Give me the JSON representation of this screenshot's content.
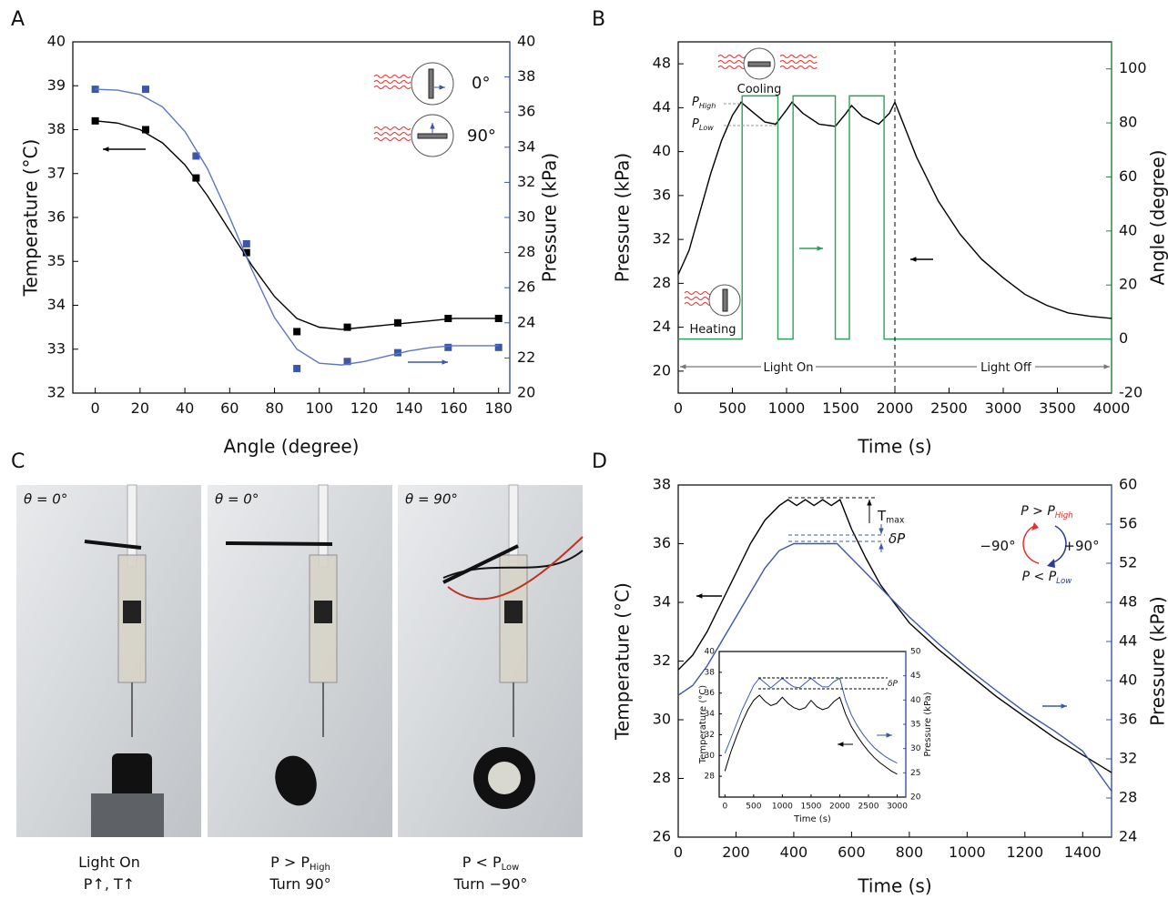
{
  "chart_data": [
    {
      "type": "line",
      "panel": "A",
      "x_label": "Angle (degree)",
      "y_label": "Temperature (°C)",
      "y2_label": "Pressure (kPa)",
      "xlim": [
        -10,
        185
      ],
      "xticks": [
        0,
        20,
        40,
        60,
        80,
        100,
        120,
        140,
        160,
        180
      ],
      "ylim": [
        32,
        40
      ],
      "yticks": [
        32,
        33,
        34,
        35,
        36,
        37,
        38,
        39,
        40
      ],
      "y2lim": [
        20,
        40
      ],
      "y2ticks": [
        20,
        22,
        24,
        26,
        28,
        30,
        32,
        34,
        36,
        38,
        40
      ],
      "y2_color": "#3b58a8",
      "series": [
        {
          "style": "markers",
          "color": "#000000",
          "x": [
            0,
            22.5,
            45,
            67.5,
            90,
            112.5,
            135,
            157.5,
            180
          ],
          "values": [
            38.2,
            38.0,
            36.9,
            35.2,
            33.4,
            33.5,
            33.6,
            33.7,
            33.7
          ]
        },
        {
          "style": "line",
          "color": "#000000",
          "x": [
            0,
            10,
            20,
            30,
            40,
            50,
            60,
            70,
            80,
            90,
            100,
            110,
            120,
            130,
            140,
            150,
            160,
            170,
            180
          ],
          "values": [
            38.2,
            38.15,
            38.0,
            37.7,
            37.2,
            36.5,
            35.7,
            34.9,
            34.2,
            33.7,
            33.5,
            33.45,
            33.5,
            33.55,
            33.6,
            33.65,
            33.7,
            33.7,
            33.7
          ]
        },
        {
          "style": "markers",
          "color": "#3b58a8",
          "axis": "y2",
          "x": [
            0,
            22.5,
            45,
            67.5,
            90,
            112.5,
            135,
            157.5,
            180
          ],
          "values": [
            37.3,
            37.3,
            33.5,
            28.5,
            21.4,
            21.8,
            22.3,
            22.6,
            22.6
          ]
        },
        {
          "style": "line",
          "color": "#5b77c0",
          "axis": "y2",
          "x": [
            0,
            10,
            20,
            30,
            40,
            50,
            60,
            70,
            80,
            90,
            100,
            110,
            120,
            130,
            140,
            150,
            160,
            170,
            180
          ],
          "values": [
            37.3,
            37.25,
            37.0,
            36.3,
            34.9,
            32.8,
            30.0,
            27.0,
            24.3,
            22.5,
            21.7,
            21.6,
            21.8,
            22.1,
            22.4,
            22.6,
            22.7,
            22.7,
            22.7
          ]
        }
      ],
      "annotations": [
        {
          "text": "0°"
        },
        {
          "text": "90°"
        }
      ]
    },
    {
      "type": "line",
      "panel": "B",
      "x_label": "Time (s)",
      "y_label": "Pressure (kPa)",
      "y2_label": "Angle (degree)",
      "xlim": [
        0,
        4000
      ],
      "xticks": [
        0,
        500,
        1000,
        1500,
        2000,
        2500,
        3000,
        3500,
        4000
      ],
      "ylim": [
        18,
        50
      ],
      "yticks": [
        20,
        24,
        28,
        32,
        36,
        40,
        44,
        48
      ],
      "y2lim": [
        -20,
        110
      ],
      "y2ticks": [
        -20,
        0,
        20,
        40,
        60,
        80,
        100
      ],
      "y2_color": "#1e8a3e",
      "series": [
        {
          "style": "line",
          "color": "#000000",
          "x": [
            0,
            100,
            200,
            300,
            400,
            500,
            580,
            700,
            800,
            900,
            1000,
            1050,
            1150,
            1300,
            1450,
            1550,
            1600,
            1700,
            1850,
            1950,
            2000,
            2100,
            2200,
            2400,
            2600,
            2800,
            3000,
            3200,
            3400,
            3600,
            3800,
            4000
          ],
          "values": [
            28.8,
            31,
            34.5,
            38,
            41,
            43.3,
            44.5,
            43.5,
            42.7,
            42.5,
            43.8,
            44.5,
            43.5,
            42.5,
            42.3,
            43.5,
            44.2,
            43.2,
            42.5,
            43.5,
            44.5,
            42,
            39.5,
            35.5,
            32.5,
            30.2,
            28.5,
            27,
            26,
            25.3,
            25,
            24.8
          ]
        },
        {
          "style": "line",
          "color": "#2ca05a",
          "axis": "y2",
          "x": [
            0,
            590,
            590,
            920,
            920,
            1060,
            1060,
            1450,
            1450,
            1580,
            1580,
            1900,
            1900,
            4000
          ],
          "values": [
            0,
            0,
            90,
            90,
            0,
            0,
            90,
            90,
            0,
            0,
            90,
            90,
            0,
            0
          ]
        }
      ],
      "annotations": [
        {
          "text": "Cooling"
        },
        {
          "text": "Heating"
        },
        {
          "text": "Light On"
        },
        {
          "text": "Light Off"
        },
        {
          "text": "P",
          "sub": "High"
        },
        {
          "text": "P",
          "sub": "Low"
        }
      ]
    },
    {
      "type": "line",
      "panel": "D",
      "x_label": "Time (s)",
      "y_label": "Temperature (°C)",
      "y2_label": "Pressure (kPa)",
      "xlim": [
        0,
        1500
      ],
      "xticks": [
        0,
        200,
        400,
        600,
        800,
        1000,
        1200,
        1400
      ],
      "ylim": [
        26,
        38
      ],
      "yticks": [
        26,
        28,
        30,
        32,
        34,
        36,
        38
      ],
      "y2lim": [
        24,
        60
      ],
      "y2ticks": [
        24,
        28,
        32,
        36,
        40,
        44,
        48,
        52,
        56,
        60
      ],
      "y2_color": "#3b58a8",
      "series": [
        {
          "style": "line",
          "color": "#000000",
          "x": [
            0,
            50,
            100,
            150,
            200,
            250,
            300,
            350,
            380,
            410,
            440,
            470,
            500,
            530,
            560,
            600,
            650,
            700,
            800,
            900,
            1000,
            1100,
            1200,
            1300,
            1400,
            1500
          ],
          "values": [
            31.7,
            32.2,
            33.0,
            34.0,
            35.0,
            36.0,
            36.8,
            37.3,
            37.5,
            37.3,
            37.5,
            37.3,
            37.5,
            37.3,
            37.5,
            36.5,
            35.5,
            34.6,
            33.3,
            32.4,
            31.6,
            30.8,
            30.1,
            29.4,
            28.8,
            28.2
          ]
        },
        {
          "style": "line",
          "color": "#3b58a8",
          "axis": "y2",
          "x": [
            0,
            50,
            100,
            150,
            200,
            250,
            300,
            350,
            400,
            450,
            500,
            550,
            600,
            650,
            700,
            800,
            900,
            1000,
            1100,
            1200,
            1300,
            1400,
            1500
          ],
          "values": [
            38.5,
            39.5,
            41.5,
            44,
            46.5,
            49,
            51.5,
            53.3,
            54.0,
            54.0,
            54.0,
            54.0,
            52.5,
            51,
            49.5,
            46.5,
            43.8,
            41.3,
            39,
            36.8,
            34.9,
            32.8,
            28.7
          ]
        }
      ],
      "annotations": [
        {
          "text": "T",
          "sub": "max"
        },
        {
          "text": "δP"
        },
        {
          "text": "P > P",
          "sub": "High"
        },
        {
          "text": "−90°"
        },
        {
          "text": "+90°"
        },
        {
          "text": "P < P",
          "sub": "Low"
        }
      ]
    },
    {
      "type": "line",
      "inset": true,
      "x_label": "Time (s)",
      "y_label": "Temperature (°C)",
      "y2_label": "Pressure (kPa)",
      "xlim": [
        -100,
        3150
      ],
      "xticks": [
        0,
        500,
        1000,
        1500,
        2000,
        2500,
        3000
      ],
      "ylim": [
        26,
        40
      ],
      "yticks": [
        28,
        30,
        32,
        34,
        36,
        38,
        40
      ],
      "y2lim": [
        20,
        50
      ],
      "y2ticks": [
        20,
        25,
        30,
        35,
        40,
        45,
        50
      ],
      "y2_color": "#3b58a8",
      "series": [
        {
          "style": "line",
          "color": "#000000",
          "x": [
            0,
            100,
            200,
            300,
            400,
            500,
            600,
            700,
            800,
            900,
            1000,
            1100,
            1200,
            1300,
            1400,
            1500,
            1600,
            1700,
            1800,
            1900,
            2000,
            2100,
            2200,
            2300,
            2400,
            2500,
            2600,
            2700,
            2800,
            2900,
            3000
          ],
          "values": [
            28.5,
            30.3,
            31.8,
            33.2,
            34.4,
            35.3,
            35.8,
            35.2,
            34.8,
            35.0,
            35.6,
            35.0,
            34.6,
            34.4,
            34.6,
            35.3,
            34.7,
            34.4,
            34.6,
            35.2,
            35.6,
            34.0,
            32.8,
            31.9,
            31.1,
            30.4,
            29.8,
            29.3,
            28.9,
            28.5,
            28.2
          ]
        },
        {
          "style": "line",
          "color": "#3b58a8",
          "axis": "y2",
          "x": [
            0,
            100,
            200,
            300,
            400,
            500,
            600,
            700,
            800,
            900,
            1000,
            1100,
            1200,
            1300,
            1400,
            1500,
            1600,
            1700,
            1800,
            1900,
            2000,
            2100,
            2200,
            2300,
            2400,
            2500,
            2600,
            2700,
            2800,
            2900,
            3000
          ],
          "values": [
            29,
            32,
            35,
            38,
            40.5,
            43,
            44.5,
            43.5,
            42.5,
            43.5,
            44.5,
            43.5,
            42.7,
            42.5,
            43.5,
            44.5,
            43.5,
            42.7,
            42.7,
            43.8,
            44.5,
            40,
            37,
            34.8,
            33,
            31.5,
            30.2,
            29.2,
            28.3,
            27.6,
            27
          ]
        }
      ],
      "annotations": [
        {
          "text": "δP"
        }
      ]
    }
  ],
  "photo_panel": {
    "label": "C",
    "photos": [
      {
        "angle_label": "θ = 0°",
        "caption": [
          {
            "text": "Light On"
          },
          {
            "text": "P↑, T↑"
          }
        ]
      },
      {
        "angle_label": "θ = 0°",
        "caption": [
          {
            "text": "P > P",
            "sub": "High"
          },
          {
            "text": "Turn 90°"
          }
        ]
      },
      {
        "angle_label": "θ = 90°",
        "caption": [
          {
            "text": "P < P",
            "sub": "Low"
          },
          {
            "text": "Turn −90°"
          }
        ]
      }
    ]
  }
}
